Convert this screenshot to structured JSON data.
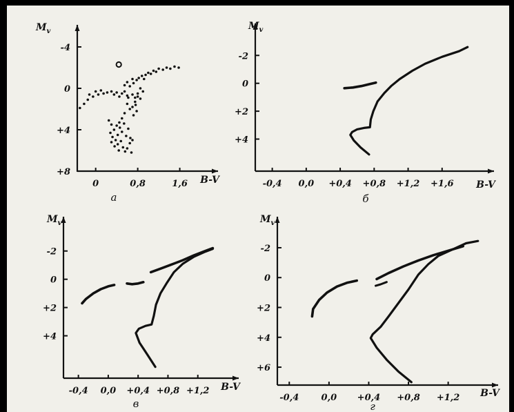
{
  "colors": {
    "ink": "#111111",
    "paper": "#f1f0ea",
    "frame": "#000000"
  },
  "chart_data": [
    {
      "type": "scatter",
      "panel_label": "а",
      "xlabel": "B-V",
      "ylabel": "Mv",
      "xlim": [
        -0.35,
        1.75
      ],
      "ylim": [
        8.0,
        -4.8
      ],
      "y_inverted": true,
      "x_ticks": [
        {
          "v": 0.0,
          "t": "0"
        },
        {
          "v": 0.8,
          "t": "0,8"
        },
        {
          "v": 1.6,
          "t": "1,6"
        }
      ],
      "y_ticks": [
        {
          "v": -4,
          "t": "-4"
        },
        {
          "v": 0,
          "t": "0"
        },
        {
          "v": 4,
          "t": "+4"
        },
        {
          "v": 8,
          "t": "+8"
        }
      ],
      "open_points": [
        [
          0.44,
          -2.3
        ]
      ],
      "series": [
        {
          "values": [
            [
              -0.3,
              1.9
            ],
            [
              -0.22,
              1.5
            ],
            [
              -0.15,
              1.1
            ],
            [
              -0.12,
              0.6
            ],
            [
              -0.05,
              0.8
            ],
            [
              0.0,
              0.3
            ],
            [
              0.05,
              0.6
            ],
            [
              0.1,
              0.2
            ],
            [
              0.15,
              0.5
            ],
            [
              0.22,
              0.4
            ],
            [
              0.3,
              0.3
            ],
            [
              0.35,
              0.6
            ],
            [
              0.4,
              0.4
            ],
            [
              0.45,
              0.8
            ],
            [
              0.5,
              0.5
            ],
            [
              0.55,
              0.3
            ],
            [
              0.6,
              0.7
            ],
            [
              0.62,
              0.9
            ],
            [
              0.7,
              0.6
            ],
            [
              0.75,
              0.9
            ],
            [
              0.8,
              0.5
            ],
            [
              0.55,
              -0.3
            ],
            [
              0.6,
              -0.6
            ],
            [
              0.65,
              -0.2
            ],
            [
              0.7,
              -0.9
            ],
            [
              0.72,
              -0.5
            ],
            [
              0.78,
              -0.8
            ],
            [
              0.82,
              -1.0
            ],
            [
              0.88,
              -1.2
            ],
            [
              0.92,
              -0.9
            ],
            [
              0.95,
              -1.3
            ],
            [
              1.0,
              -1.5
            ],
            [
              1.05,
              -1.4
            ],
            [
              1.1,
              -1.7
            ],
            [
              1.15,
              -1.6
            ],
            [
              1.2,
              -1.9
            ],
            [
              1.28,
              -1.8
            ],
            [
              1.35,
              -2.0
            ],
            [
              1.42,
              -1.9
            ],
            [
              1.5,
              -2.1
            ],
            [
              1.58,
              -2.0
            ],
            [
              0.85,
              0.0
            ],
            [
              0.8,
              0.8
            ],
            [
              0.75,
              1.3
            ],
            [
              0.7,
              1.8
            ],
            [
              0.78,
              2.2
            ],
            [
              0.72,
              2.6
            ],
            [
              0.65,
              2.0
            ],
            [
              0.6,
              1.5
            ],
            [
              0.55,
              2.4
            ],
            [
              0.5,
              2.9
            ],
            [
              0.45,
              3.3
            ],
            [
              0.4,
              3.6
            ],
            [
              0.35,
              4.0
            ],
            [
              0.3,
              3.5
            ],
            [
              0.25,
              3.1
            ],
            [
              0.28,
              4.3
            ],
            [
              0.32,
              4.7
            ],
            [
              0.38,
              5.0
            ],
            [
              0.42,
              5.4
            ],
            [
              0.48,
              5.1
            ],
            [
              0.52,
              5.7
            ],
            [
              0.56,
              6.1
            ],
            [
              0.6,
              5.8
            ],
            [
              0.65,
              5.3
            ],
            [
              0.68,
              6.2
            ],
            [
              0.7,
              5.0
            ],
            [
              0.58,
              4.6
            ],
            [
              0.5,
              4.2
            ],
            [
              0.42,
              4.5
            ],
            [
              0.46,
              3.8
            ],
            [
              0.62,
              3.9
            ],
            [
              0.66,
              4.8
            ],
            [
              0.36,
              5.6
            ],
            [
              0.44,
              6.0
            ],
            [
              0.3,
              5.2
            ],
            [
              0.54,
              3.4
            ],
            [
              0.76,
              1.6
            ],
            [
              0.85,
              1.0
            ],
            [
              0.9,
              0.3
            ]
          ]
        }
      ]
    },
    {
      "type": "line",
      "panel_label": "б",
      "xlabel": "B-V",
      "ylabel": "Mv",
      "xlim": [
        -0.6,
        2.0
      ],
      "ylim": [
        6.3,
        -3.4
      ],
      "y_inverted": true,
      "x_ticks": [
        {
          "v": -0.4,
          "t": "-0,4"
        },
        {
          "v": 0.0,
          "t": "0,0"
        },
        {
          "v": 0.4,
          "t": "+0,4"
        },
        {
          "v": 0.8,
          "t": "+0,8"
        },
        {
          "v": 1.2,
          "t": "+1,2"
        },
        {
          "v": 1.6,
          "t": "+1,6"
        }
      ],
      "y_ticks": [
        {
          "v": -2,
          "t": "-2"
        },
        {
          "v": 0,
          "t": "0"
        },
        {
          "v": 2,
          "t": "+2"
        },
        {
          "v": 4,
          "t": "+4"
        }
      ],
      "series": [
        {
          "width": 3.2,
          "values": [
            [
              0.74,
              5.1
            ],
            [
              0.64,
              4.6
            ],
            [
              0.56,
              4.1
            ],
            [
              0.52,
              3.7
            ],
            [
              0.54,
              3.5
            ],
            [
              0.6,
              3.3
            ],
            [
              0.68,
              3.2
            ],
            [
              0.75,
              3.15
            ],
            [
              0.76,
              2.6
            ],
            [
              0.79,
              2.0
            ],
            [
              0.84,
              1.3
            ],
            [
              0.92,
              0.7
            ],
            [
              1.0,
              0.2
            ],
            [
              1.1,
              -0.3
            ],
            [
              1.25,
              -0.9
            ],
            [
              1.4,
              -1.4
            ],
            [
              1.6,
              -1.9
            ],
            [
              1.8,
              -2.3
            ],
            [
              1.9,
              -2.6
            ]
          ]
        },
        {
          "width": 3.6,
          "values": [
            [
              0.45,
              0.35
            ],
            [
              0.55,
              0.3
            ],
            [
              0.65,
              0.2
            ],
            [
              0.75,
              0.05
            ],
            [
              0.82,
              -0.05
            ]
          ]
        }
      ]
    },
    {
      "type": "line",
      "panel_label": "в",
      "xlabel": "B-V",
      "ylabel": "Mv",
      "xlim": [
        -0.6,
        1.6
      ],
      "ylim": [
        7.0,
        -3.5
      ],
      "y_inverted": true,
      "x_ticks": [
        {
          "v": -0.4,
          "t": "-0,4"
        },
        {
          "v": 0.0,
          "t": "0,0"
        },
        {
          "v": 0.4,
          "t": "+0,4"
        },
        {
          "v": 0.8,
          "t": "+0,8"
        },
        {
          "v": 1.2,
          "t": "+1,2"
        }
      ],
      "y_ticks": [
        {
          "v": -2,
          "t": "-2"
        },
        {
          "v": 0,
          "t": "0"
        },
        {
          "v": 2,
          "t": "+2"
        },
        {
          "v": 4,
          "t": "+4"
        }
      ],
      "series": [
        {
          "width": 3.2,
          "values": [
            [
              0.63,
              6.2
            ],
            [
              0.52,
              5.3
            ],
            [
              0.42,
              4.5
            ],
            [
              0.37,
              3.8
            ],
            [
              0.41,
              3.5
            ],
            [
              0.5,
              3.3
            ],
            [
              0.58,
              3.2
            ],
            [
              0.61,
              2.6
            ],
            [
              0.64,
              1.8
            ],
            [
              0.7,
              1.0
            ],
            [
              0.78,
              0.3
            ],
            [
              0.88,
              -0.5
            ],
            [
              1.0,
              -1.1
            ],
            [
              1.15,
              -1.6
            ],
            [
              1.3,
              -1.95
            ],
            [
              1.4,
              -2.15
            ]
          ]
        },
        {
          "width": 3.6,
          "values": [
            [
              0.57,
              -0.5
            ],
            [
              0.7,
              -0.75
            ],
            [
              0.85,
              -1.05
            ],
            [
              1.0,
              -1.35
            ],
            [
              1.15,
              -1.7
            ],
            [
              1.3,
              -2.0
            ],
            [
              1.4,
              -2.2
            ]
          ]
        },
        {
          "width": 3.6,
          "values": [
            [
              -0.35,
              1.7
            ],
            [
              -0.3,
              1.4
            ],
            [
              -0.2,
              1.0
            ],
            [
              -0.1,
              0.7
            ],
            [
              0.0,
              0.5
            ],
            [
              0.08,
              0.4
            ]
          ]
        },
        {
          "width": 3.6,
          "values": [
            [
              0.25,
              0.3
            ],
            [
              0.32,
              0.35
            ],
            [
              0.4,
              0.3
            ],
            [
              0.47,
              0.2
            ]
          ]
        }
      ]
    },
    {
      "type": "line",
      "panel_label": "г",
      "xlabel": "B-V",
      "ylabel": "Mv",
      "xlim": [
        -0.52,
        1.55
      ],
      "ylim": [
        7.2,
        -3.2
      ],
      "y_inverted": true,
      "x_ticks": [
        {
          "v": -0.4,
          "t": "-0,4"
        },
        {
          "v": 0.0,
          "t": "0,0"
        },
        {
          "v": 0.4,
          "t": "+0,4"
        },
        {
          "v": 0.8,
          "t": "+0,8"
        },
        {
          "v": 1.2,
          "t": "+1,2"
        }
      ],
      "y_ticks": [
        {
          "v": -2,
          "t": "-2"
        },
        {
          "v": 0,
          "t": "0"
        },
        {
          "v": 2,
          "t": "+2"
        },
        {
          "v": 4,
          "t": "+4"
        },
        {
          "v": 6,
          "t": "+6"
        }
      ],
      "series": [
        {
          "width": 3.2,
          "values": [
            [
              0.83,
              7.0
            ],
            [
              0.7,
              6.3
            ],
            [
              0.58,
              5.5
            ],
            [
              0.48,
              4.7
            ],
            [
              0.42,
              4.05
            ],
            [
              0.44,
              3.8
            ],
            [
              0.52,
              3.3
            ],
            [
              0.6,
              2.6
            ],
            [
              0.7,
              1.7
            ],
            [
              0.8,
              0.8
            ],
            [
              0.9,
              -0.2
            ],
            [
              1.0,
              -0.9
            ],
            [
              1.1,
              -1.45
            ],
            [
              1.25,
              -1.9
            ],
            [
              1.38,
              -2.3
            ],
            [
              1.5,
              -2.45
            ]
          ]
        },
        {
          "width": 3.6,
          "values": [
            [
              0.48,
              0.1
            ],
            [
              0.6,
              -0.3
            ],
            [
              0.75,
              -0.75
            ],
            [
              0.9,
              -1.15
            ],
            [
              1.05,
              -1.5
            ],
            [
              1.2,
              -1.8
            ],
            [
              1.35,
              -2.1
            ]
          ]
        },
        {
          "width": 3.6,
          "values": [
            [
              -0.17,
              2.6
            ],
            [
              -0.16,
              2.1
            ],
            [
              -0.1,
              1.5
            ],
            [
              -0.02,
              1.0
            ],
            [
              0.08,
              0.6
            ],
            [
              0.18,
              0.35
            ],
            [
              0.28,
              0.2
            ]
          ]
        },
        {
          "width": 3.0,
          "values": [
            [
              0.47,
              0.55
            ],
            [
              0.52,
              0.45
            ],
            [
              0.58,
              0.3
            ]
          ]
        }
      ]
    }
  ]
}
